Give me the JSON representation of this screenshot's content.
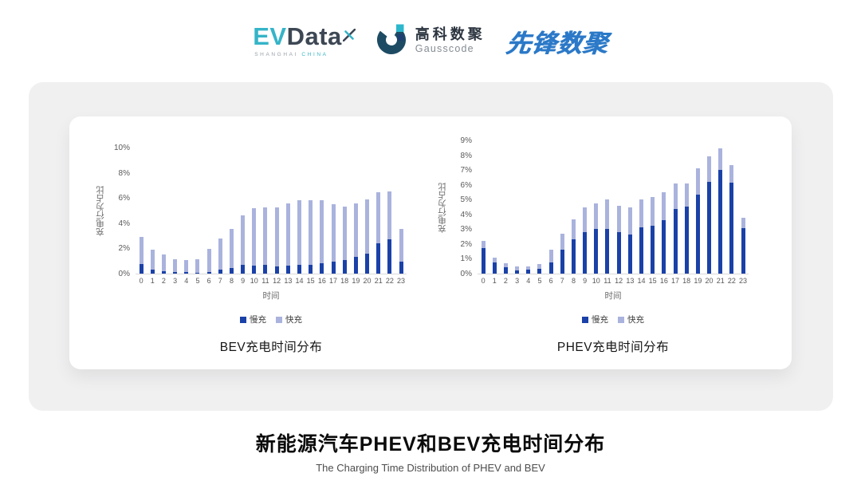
{
  "header": {
    "evdata": {
      "ev": "EV",
      "data": "Data",
      "sub_left": "SHANGHAI",
      "sub_right": "CHINA"
    },
    "gausscode": {
      "zh": "高科数聚",
      "en": "Gausscode"
    },
    "pioneer": {
      "text": "先锋数聚"
    }
  },
  "chart_data": [
    {
      "type": "bar",
      "stacked": true,
      "title": "BEV充电时间分布",
      "xlabel": "时间",
      "ylabel": "充电行为占比",
      "categories": [
        "0",
        "1",
        "2",
        "3",
        "4",
        "5",
        "6",
        "7",
        "8",
        "9",
        "10",
        "11",
        "12",
        "13",
        "14",
        "15",
        "16",
        "17",
        "18",
        "19",
        "20",
        "21",
        "22",
        "23"
      ],
      "series": [
        {
          "name": "慢充",
          "color": "#1a41a8",
          "values": [
            0.75,
            0.3,
            0.2,
            0.15,
            0.1,
            0.05,
            0.15,
            0.3,
            0.45,
            0.7,
            0.65,
            0.7,
            0.6,
            0.65,
            0.7,
            0.7,
            0.8,
            0.95,
            1.05,
            1.3,
            1.6,
            2.4,
            2.7,
            0.95
          ]
        },
        {
          "name": "快充",
          "color": "#aab3dd",
          "values": [
            2.15,
            1.6,
            1.3,
            1.0,
            0.95,
            1.1,
            1.8,
            2.5,
            3.1,
            3.95,
            4.55,
            4.55,
            4.65,
            4.95,
            5.1,
            5.1,
            5.05,
            4.55,
            4.25,
            4.3,
            4.3,
            4.05,
            3.85,
            2.6
          ]
        }
      ],
      "ylim": [
        0,
        10
      ],
      "yticks": [
        "10%",
        "8%",
        "6%",
        "4%",
        "2%",
        "0%"
      ],
      "grid": false,
      "legend_position": "bottom"
    },
    {
      "type": "bar",
      "stacked": true,
      "title": "PHEV充电时间分布",
      "xlabel": "时间",
      "ylabel": "充电行为占比",
      "categories": [
        "0",
        "1",
        "2",
        "3",
        "4",
        "5",
        "6",
        "7",
        "8",
        "9",
        "10",
        "11",
        "12",
        "13",
        "14",
        "15",
        "16",
        "17",
        "18",
        "19",
        "20",
        "21",
        "22",
        "23"
      ],
      "series": [
        {
          "name": "慢充",
          "color": "#1a41a8",
          "values": [
            1.75,
            0.75,
            0.45,
            0.2,
            0.25,
            0.3,
            0.75,
            1.6,
            2.3,
            2.8,
            3.0,
            3.0,
            2.8,
            2.65,
            3.1,
            3.25,
            3.6,
            4.35,
            4.55,
            5.35,
            6.2,
            7.0,
            6.15,
            3.05
          ]
        },
        {
          "name": "快充",
          "color": "#aab3dd",
          "values": [
            0.45,
            0.35,
            0.25,
            0.3,
            0.25,
            0.35,
            0.85,
            1.1,
            1.35,
            1.7,
            1.75,
            2.0,
            1.8,
            1.8,
            1.9,
            1.95,
            1.9,
            1.75,
            1.55,
            1.75,
            1.7,
            1.45,
            1.2,
            0.75
          ]
        }
      ],
      "ylim": [
        0,
        9
      ],
      "yticks": [
        "9%",
        "8%",
        "7%",
        "6%",
        "5%",
        "4%",
        "3%",
        "2%",
        "1%",
        "0%"
      ],
      "grid": false,
      "legend_position": "bottom"
    }
  ],
  "footer": {
    "title": "新能源汽车PHEV和BEV充电时间分布",
    "subtitle": "The Charging Time Distribution of PHEV and BEV"
  }
}
